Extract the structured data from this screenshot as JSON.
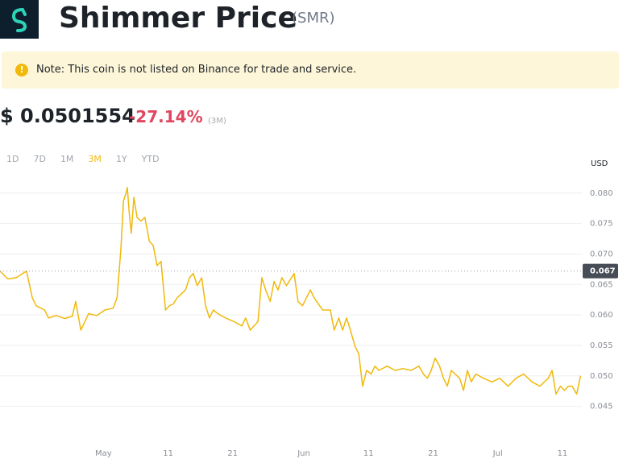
{
  "header": {
    "title": "Shimmer Price",
    "symbol": "(SMR)"
  },
  "note": "Note: This coin is not listed on Binance for trade and service.",
  "price": "$ 0.0501554",
  "change": "-27.14%",
  "period": "(3M)",
  "intervals": [
    {
      "label": "1D",
      "selected": false
    },
    {
      "label": "7D",
      "selected": false
    },
    {
      "label": "1M",
      "selected": false
    },
    {
      "label": "3M",
      "selected": true
    },
    {
      "label": "1Y",
      "selected": false
    },
    {
      "label": "YTD",
      "selected": false
    }
  ],
  "chart_data": {
    "type": "line",
    "y_axis_label": "USD",
    "color": "#f0b90b",
    "grid": true,
    "x": [
      0,
      1.2,
      2.5,
      4.1,
      5.0,
      5.6,
      6.9,
      7.5,
      8.7,
      10.0,
      11.2,
      11.7,
      12.5,
      13.7,
      15.0,
      16.2,
      17.5,
      18.1,
      18.7,
      19.1,
      19.5,
      19.7,
      20.0,
      20.3,
      20.7,
      21.2,
      21.8,
      22.4,
      23.1,
      23.7,
      24.3,
      24.9,
      25.6,
      26.2,
      26.8,
      27.4,
      28.1,
      28.7,
      29.3,
      29.9,
      30.5,
      31.2,
      31.8,
      32.4,
      33.0,
      33.7,
      34.9,
      36.2,
      37.4,
      38.0,
      38.7,
      39.9,
      40.5,
      41.1,
      41.8,
      42.4,
      43.0,
      43.6,
      44.3,
      45.5,
      46.1,
      46.8,
      48.0,
      48.6,
      49.9,
      51.1,
      51.7,
      52.4,
      53.0,
      53.6,
      54.2,
      54.9,
      55.5,
      56.1,
      56.7,
      57.4,
      58.0,
      58.6,
      59.9,
      61.1,
      62.3,
      63.6,
      64.8,
      65.5,
      66.1,
      66.7,
      67.3,
      68.0,
      68.6,
      69.2,
      69.8,
      71.1,
      71.7,
      72.3,
      72.9,
      73.6,
      74.8,
      76.1,
      77.3,
      78.6,
      79.8,
      81.0,
      82.3,
      83.5,
      84.8,
      85.4,
      86.0,
      86.7,
      87.3,
      87.9,
      88.5,
      89.2,
      89.8
    ],
    "series": [
      {
        "name": "SMR/USD",
        "values": [
          0.0672,
          0.0659,
          0.0661,
          0.0672,
          0.0628,
          0.0615,
          0.0608,
          0.0595,
          0.0599,
          0.0594,
          0.0598,
          0.0622,
          0.0575,
          0.0602,
          0.0599,
          0.0608,
          0.0611,
          0.0628,
          0.0708,
          0.0787,
          0.08,
          0.0809,
          0.0767,
          0.0734,
          0.0793,
          0.076,
          0.0754,
          0.076,
          0.0721,
          0.0714,
          0.0681,
          0.0688,
          0.0608,
          0.0615,
          0.0618,
          0.0628,
          0.0635,
          0.0641,
          0.0661,
          0.0668,
          0.0648,
          0.0661,
          0.0615,
          0.0595,
          0.0608,
          0.0602,
          0.0595,
          0.0589,
          0.0582,
          0.0595,
          0.0575,
          0.0589,
          0.0661,
          0.0641,
          0.0622,
          0.0655,
          0.0641,
          0.0661,
          0.0648,
          0.0668,
          0.0622,
          0.0615,
          0.0641,
          0.0628,
          0.0608,
          0.0608,
          0.0575,
          0.0595,
          0.0575,
          0.0595,
          0.0575,
          0.0549,
          0.0536,
          0.0483,
          0.0509,
          0.0503,
          0.0516,
          0.0509,
          0.0516,
          0.0509,
          0.0512,
          0.0509,
          0.0516,
          0.0503,
          0.0496,
          0.0509,
          0.0529,
          0.0516,
          0.0496,
          0.0483,
          0.0509,
          0.0496,
          0.0476,
          0.0509,
          0.049,
          0.0503,
          0.0496,
          0.049,
          0.0496,
          0.0483,
          0.0496,
          0.0503,
          0.049,
          0.0483,
          0.0496,
          0.0509,
          0.047,
          0.0483,
          0.0476,
          0.0483,
          0.0483,
          0.047,
          0.05
        ]
      }
    ],
    "xlim": [
      0,
      90
    ],
    "xticks": [
      {
        "value": 16,
        "label": "May"
      },
      {
        "value": 26,
        "label": "11"
      },
      {
        "value": 36,
        "label": "21"
      },
      {
        "value": 47,
        "label": "Jun"
      },
      {
        "value": 57,
        "label": "11"
      },
      {
        "value": 67,
        "label": "21"
      },
      {
        "value": 77,
        "label": "Jul"
      },
      {
        "value": 87,
        "label": "11"
      }
    ],
    "ylim": [
      0.039,
      0.0875
    ],
    "yticks": [
      0.045,
      {
        "value": 0.05,
        "label": "0.050"
      },
      0.055,
      {
        "value": 0.06,
        "label": "0.060"
      },
      0.065,
      {
        "value": 0.07,
        "label": "0.070"
      },
      0.075,
      {
        "value": 0.08,
        "label": "0.080"
      }
    ],
    "reference": {
      "value": 0.0672,
      "label": "0.067"
    }
  }
}
